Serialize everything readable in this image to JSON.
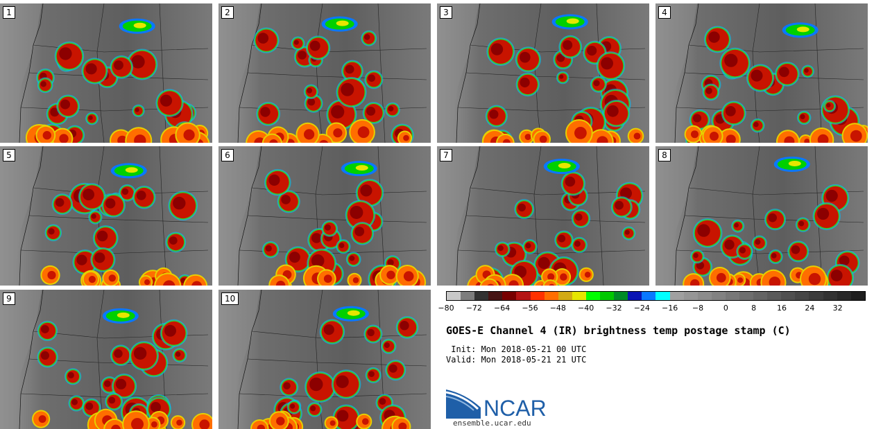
{
  "panels": [
    {
      "label": "1"
    },
    {
      "label": "2"
    },
    {
      "label": "3"
    },
    {
      "label": "4"
    },
    {
      "label": "5"
    },
    {
      "label": "6"
    },
    {
      "label": "7"
    },
    {
      "label": "8"
    },
    {
      "label": "9"
    },
    {
      "label": "10"
    }
  ],
  "colorbar": {
    "colors": [
      "#c8c8c8",
      "#7d7d7d",
      "#323232",
      "#461414",
      "#780000",
      "#b41414",
      "#ff3200",
      "#ff6e00",
      "#d2aa14",
      "#e6e600",
      "#00ff00",
      "#00c800",
      "#008c28",
      "#0a14b4",
      "#0a78ff",
      "#00ffff",
      "#a0a0a0",
      "#969696",
      "#8c8c8c",
      "#828282",
      "#787878",
      "#6e6e6e",
      "#646464",
      "#5a5a5a",
      "#505050",
      "#464646",
      "#3c3c3c",
      "#323232",
      "#282828",
      "#1e1e1e"
    ],
    "ticks": [
      "−80",
      "−72",
      "−64",
      "−56",
      "−48",
      "−40",
      "−32",
      "−24",
      "−16",
      "−8",
      "0",
      "8",
      "16",
      "24",
      "32"
    ],
    "min": -80,
    "max": 40
  },
  "title": "GOES-E Channel 4 (IR) brightness temp postage stamp (C)",
  "init": " Init: Mon 2018-05-21 00 UTC",
  "valid": "Valid: Mon 2018-05-21 21 UTC",
  "logo": {
    "name": "NCAR",
    "url": "ensemble.ucar.edu",
    "color": "#1f5fa8"
  }
}
